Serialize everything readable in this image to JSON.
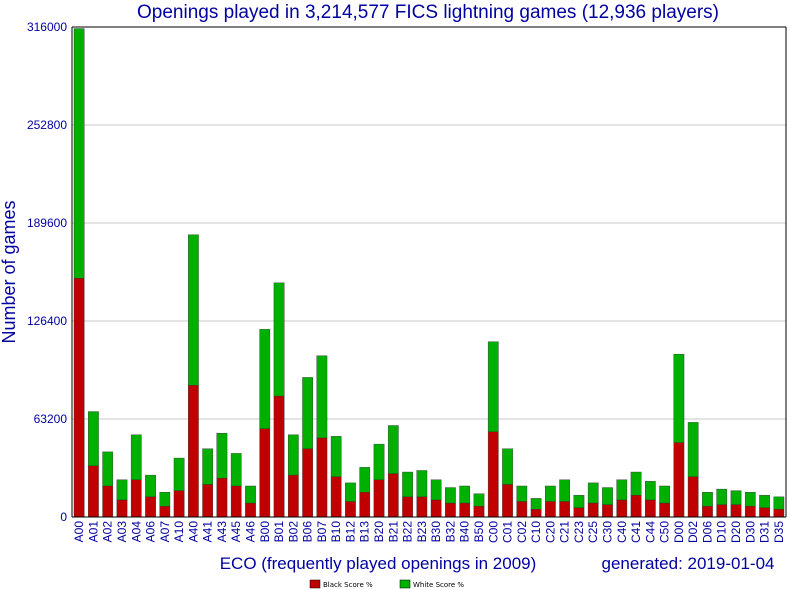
{
  "chart_data": {
    "type": "bar",
    "stacked": true,
    "title": "Openings played in 3,214,577 FICS lightning games (12,936 players)",
    "xlabel": "ECO (frequently played openings in 2009)",
    "ylabel": "Number of games",
    "footnote": "generated: 2019-01-04",
    "ylim": [
      0,
      316000
    ],
    "yticks": [
      "0",
      "63200",
      "126400",
      "189600",
      "252800",
      "316000"
    ],
    "grid": "horizontal",
    "legend_position": "bottom",
    "colors": {
      "black_score": "#c00000",
      "white_score": "#00b000",
      "text": "#0000a0",
      "axis": "#000000",
      "grid": "#c8c8c8"
    },
    "categories": [
      "A00",
      "A01",
      "A02",
      "A03",
      "A04",
      "A06",
      "A07",
      "A10",
      "A40",
      "A41",
      "A43",
      "A45",
      "A46",
      "B00",
      "B01",
      "B02",
      "B06",
      "B07",
      "B10",
      "B12",
      "B13",
      "B20",
      "B21",
      "B22",
      "B23",
      "B30",
      "B32",
      "B40",
      "B50",
      "C00",
      "C01",
      "C02",
      "C10",
      "C20",
      "C21",
      "C23",
      "C25",
      "C30",
      "C40",
      "C41",
      "C44",
      "C50",
      "D00",
      "D02",
      "D06",
      "D10",
      "D20",
      "D30",
      "D31",
      "D35"
    ],
    "series": [
      {
        "name": "Black Score %",
        "values": [
          154000,
          33000,
          20000,
          11000,
          24000,
          13000,
          7000,
          17000,
          85000,
          21000,
          25000,
          20000,
          9000,
          57000,
          78000,
          27000,
          44000,
          51000,
          26000,
          10000,
          16000,
          24000,
          28000,
          13000,
          13000,
          11000,
          9000,
          9000,
          7000,
          55000,
          21000,
          10000,
          5000,
          10000,
          10000,
          6000,
          9000,
          8000,
          11000,
          14000,
          11000,
          9000,
          48000,
          26000,
          7000,
          8000,
          8000,
          7000,
          6000,
          5000
        ]
      },
      {
        "name": "White Score %",
        "values": [
          161000,
          35000,
          22000,
          13000,
          29000,
          14000,
          9000,
          21000,
          97000,
          23000,
          29000,
          21000,
          11000,
          64000,
          73000,
          26000,
          46000,
          53000,
          26000,
          12000,
          16000,
          23000,
          31000,
          16000,
          17000,
          13000,
          10000,
          11000,
          8000,
          58000,
          23000,
          10000,
          7000,
          10000,
          14000,
          8000,
          13000,
          11000,
          13000,
          15000,
          12000,
          11000,
          57000,
          35000,
          9000,
          10000,
          9000,
          9000,
          8000,
          8000
        ]
      }
    ]
  }
}
